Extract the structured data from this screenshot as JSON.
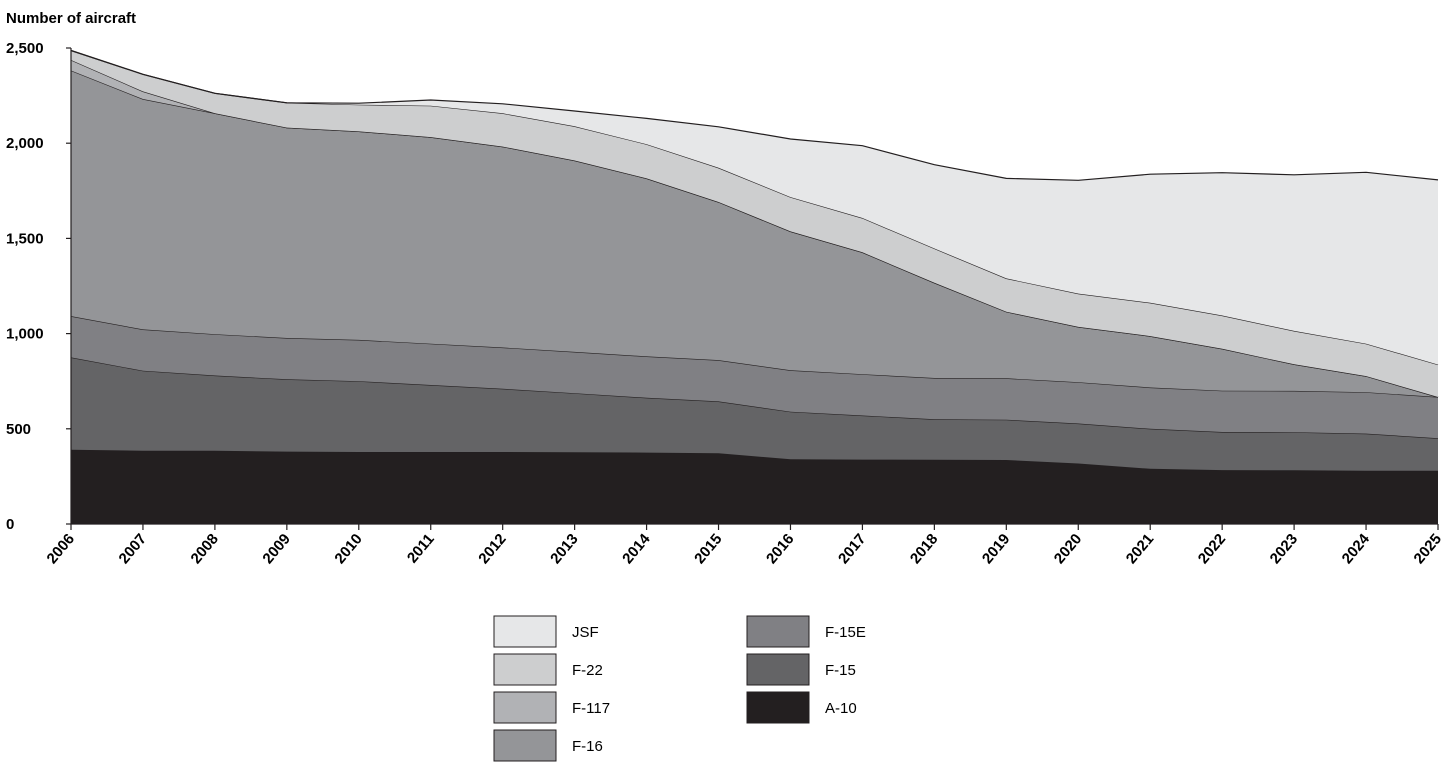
{
  "chart_data": {
    "type": "area",
    "stacked": true,
    "ylabel": "Number of aircraft",
    "xlabel": "",
    "ylim": [
      0,
      2500
    ],
    "yticks": [
      0,
      500,
      1000,
      1500,
      2000,
      2500
    ],
    "ytick_labels": [
      "0",
      "500",
      "1,000",
      "1,500",
      "2,000",
      "2,500"
    ],
    "x": [
      "2006",
      "2007",
      "2008",
      "2009",
      "2010",
      "2011",
      "2012",
      "2013",
      "2014",
      "2015",
      "2016",
      "2017",
      "2018",
      "2019",
      "2020",
      "2021",
      "2022",
      "2023",
      "2024",
      "2025"
    ],
    "series": [
      {
        "name": "A-10",
        "color": "#231f20",
        "values": [
          390,
          385,
          385,
          380,
          378,
          378,
          378,
          377,
          375,
          372,
          340,
          338,
          337,
          336,
          318,
          290,
          283,
          282,
          280,
          280
        ]
      },
      {
        "name": "F-15",
        "color": "#646466",
        "values": [
          485,
          420,
          395,
          380,
          372,
          352,
          332,
          310,
          288,
          272,
          250,
          232,
          213,
          212,
          210,
          210,
          200,
          200,
          195,
          170
        ]
      },
      {
        "name": "F-15E",
        "color": "#808084",
        "values": [
          217,
          217,
          217,
          217,
          217,
          217,
          217,
          217,
          217,
          217,
          217,
          217,
          217,
          217,
          217,
          217,
          217,
          217,
          217,
          217
        ]
      },
      {
        "name": "F-16",
        "color": "#949598",
        "values": [
          1290,
          1210,
          1160,
          1105,
          1095,
          1085,
          1055,
          1005,
          935,
          830,
          730,
          640,
          500,
          350,
          290,
          270,
          220,
          140,
          85,
          0
        ]
      },
      {
        "name": "F-117",
        "color": "#b1b2b5",
        "values": [
          55,
          40,
          0,
          0,
          0,
          0,
          0,
          0,
          0,
          0,
          0,
          0,
          0,
          0,
          0,
          0,
          0,
          0,
          0,
          0
        ]
      },
      {
        "name": "F-22",
        "color": "#cdcecf",
        "values": [
          50,
          90,
          105,
          130,
          140,
          165,
          175,
          180,
          180,
          180,
          180,
          180,
          180,
          175,
          175,
          175,
          175,
          175,
          170,
          170
        ]
      },
      {
        "name": "JSF",
        "color": "#e6e7e8",
        "values": [
          0,
          0,
          0,
          0,
          8,
          30,
          50,
          80,
          135,
          215,
          305,
          380,
          440,
          525,
          595,
          675,
          750,
          820,
          900,
          970
        ]
      }
    ],
    "legend": {
      "placement": "bottom-center",
      "col1": [
        "JSF",
        "F-22",
        "F-117",
        "F-16"
      ],
      "col2": [
        "F-15E",
        "F-15",
        "A-10"
      ]
    },
    "grid": false
  }
}
